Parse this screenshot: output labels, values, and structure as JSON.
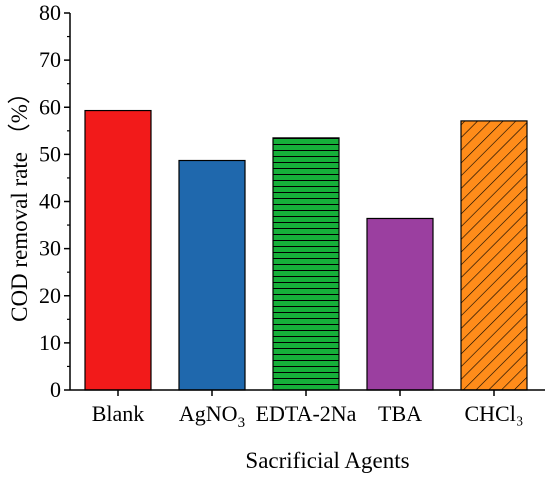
{
  "chart_data": {
    "type": "bar",
    "categories": [
      "Blank",
      "AgNO3",
      "EDTA-2Na",
      "TBA",
      "CHCl3"
    ],
    "category_labels": [
      {
        "main": "Blank",
        "sub": ""
      },
      {
        "main": "AgNO",
        "sub": "3"
      },
      {
        "main": "EDTA-2Na",
        "sub": ""
      },
      {
        "main": "TBA",
        "sub": ""
      },
      {
        "main": "CHCl₃",
        "sub": ""
      }
    ],
    "values": [
      59.3,
      48.7,
      53.5,
      36.4,
      57.1
    ],
    "colors": [
      "#f21a1a",
      "#1f68ad",
      "#16b03a",
      "#9b3fa0",
      "#ff8c1a"
    ],
    "patterns": [
      "none",
      "none",
      "horizontal-lines",
      "none",
      "diagonal-lines"
    ],
    "xlabel": "Sacrificial Agents",
    "ylabel": "COD removal rate （%）",
    "ylim": [
      0,
      80
    ],
    "yticks": [
      0,
      10,
      20,
      30,
      40,
      50,
      60,
      70,
      80
    ],
    "grid": false,
    "legend": "none"
  }
}
